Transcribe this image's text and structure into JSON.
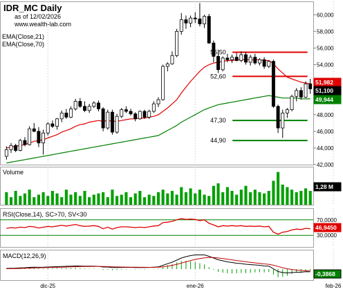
{
  "header": {
    "title": "IDR_MC Daily",
    "date_line": "as of 12/02/2026",
    "site": "www.wealth-lab.com",
    "ema_labels": [
      "EMA(Close,21)",
      "EMA(Close,70)"
    ]
  },
  "colors": {
    "up_candle": "#ffffff",
    "down_candle": "#000000",
    "ema21": "#e00000",
    "ema70": "#008000",
    "resistance": "#e00000",
    "support": "#008000",
    "volume": "#00a000",
    "rsi": "#e00000",
    "macd": "#000000",
    "macd_signal": "#c00000",
    "macd_hist": "#00a000",
    "frame": "#a0a0a0"
  },
  "chart_data": [
    {
      "type": "candlestick",
      "title": "IDR_MC Daily",
      "y_axis_ticks": [
        "60,000",
        "58,000",
        "56,000",
        "54,000",
        "52,000",
        "50,000",
        "48,000",
        "46,000",
        "44,000",
        "42,000"
      ],
      "ylim": [
        42,
        61.6
      ],
      "x_labels": [
        {
          "index": 9,
          "label": "dic-25"
        },
        {
          "index": 41,
          "label": "ene-26"
        },
        {
          "index": 71,
          "label": "feb-26"
        }
      ],
      "candles": [
        {
          "o": 43.0,
          "h": 44.2,
          "l": 42.6,
          "c": 43.8
        },
        {
          "o": 43.8,
          "h": 44.6,
          "l": 43.4,
          "c": 44.3
        },
        {
          "o": 44.3,
          "h": 44.5,
          "l": 43.5,
          "c": 43.7
        },
        {
          "o": 43.7,
          "h": 45.1,
          "l": 43.6,
          "c": 44.9
        },
        {
          "o": 44.9,
          "h": 45.3,
          "l": 44.2,
          "c": 44.4
        },
        {
          "o": 44.4,
          "h": 46.6,
          "l": 44.3,
          "c": 46.3
        },
        {
          "o": 46.3,
          "h": 47.0,
          "l": 45.9,
          "c": 46.0
        },
        {
          "o": 46.0,
          "h": 46.5,
          "l": 44.1,
          "c": 44.6
        },
        {
          "o": 44.6,
          "h": 46.2,
          "l": 43.2,
          "c": 45.8
        },
        {
          "o": 45.8,
          "h": 47.1,
          "l": 45.5,
          "c": 46.9
        },
        {
          "o": 46.9,
          "h": 47.3,
          "l": 46.4,
          "c": 46.6
        },
        {
          "o": 46.6,
          "h": 47.6,
          "l": 46.2,
          "c": 47.5
        },
        {
          "o": 47.5,
          "h": 48.5,
          "l": 47.1,
          "c": 48.2
        },
        {
          "o": 48.2,
          "h": 48.7,
          "l": 47.5,
          "c": 47.7
        },
        {
          "o": 47.7,
          "h": 49.0,
          "l": 47.6,
          "c": 48.7
        },
        {
          "o": 48.7,
          "h": 49.9,
          "l": 48.5,
          "c": 49.6
        },
        {
          "o": 49.6,
          "h": 50.0,
          "l": 48.8,
          "c": 49.0
        },
        {
          "o": 49.0,
          "h": 49.6,
          "l": 48.3,
          "c": 48.5
        },
        {
          "o": 48.5,
          "h": 49.3,
          "l": 48.2,
          "c": 49.0
        },
        {
          "o": 49.0,
          "h": 49.6,
          "l": 48.8,
          "c": 49.4
        },
        {
          "o": 49.4,
          "h": 49.7,
          "l": 48.4,
          "c": 48.7
        },
        {
          "o": 48.7,
          "h": 48.9,
          "l": 46.0,
          "c": 46.4
        },
        {
          "o": 46.4,
          "h": 48.6,
          "l": 46.2,
          "c": 48.3
        },
        {
          "o": 48.3,
          "h": 48.6,
          "l": 45.6,
          "c": 45.9
        },
        {
          "o": 45.9,
          "h": 48.1,
          "l": 45.7,
          "c": 47.8
        },
        {
          "o": 47.8,
          "h": 48.8,
          "l": 47.6,
          "c": 48.6
        },
        {
          "o": 48.6,
          "h": 49.0,
          "l": 48.2,
          "c": 48.4
        },
        {
          "o": 48.4,
          "h": 48.7,
          "l": 47.9,
          "c": 48.1
        },
        {
          "o": 48.1,
          "h": 48.3,
          "l": 47.2,
          "c": 47.5
        },
        {
          "o": 47.5,
          "h": 48.5,
          "l": 47.4,
          "c": 48.4
        },
        {
          "o": 48.4,
          "h": 48.6,
          "l": 47.5,
          "c": 47.7
        },
        {
          "o": 47.7,
          "h": 48.6,
          "l": 47.5,
          "c": 48.4
        },
        {
          "o": 48.4,
          "h": 49.6,
          "l": 48.2,
          "c": 49.3
        },
        {
          "o": 49.3,
          "h": 50.1,
          "l": 48.9,
          "c": 49.8
        },
        {
          "o": 49.8,
          "h": 54.0,
          "l": 49.7,
          "c": 53.8
        },
        {
          "o": 53.8,
          "h": 54.3,
          "l": 53.2,
          "c": 54.1
        },
        {
          "o": 54.1,
          "h": 55.6,
          "l": 54.0,
          "c": 55.1
        },
        {
          "o": 55.1,
          "h": 58.3,
          "l": 54.9,
          "c": 58.0
        },
        {
          "o": 58.0,
          "h": 60.2,
          "l": 57.6,
          "c": 59.4
        },
        {
          "o": 59.4,
          "h": 59.9,
          "l": 58.3,
          "c": 59.0
        },
        {
          "o": 59.0,
          "h": 59.9,
          "l": 58.5,
          "c": 59.6
        },
        {
          "o": 59.6,
          "h": 60.3,
          "l": 59.0,
          "c": 59.5
        },
        {
          "o": 59.5,
          "h": 61.4,
          "l": 58.6,
          "c": 58.9
        },
        {
          "o": 58.9,
          "h": 60.0,
          "l": 58.4,
          "c": 59.8
        },
        {
          "o": 59.8,
          "h": 60.1,
          "l": 56.5,
          "c": 56.6
        },
        {
          "o": 56.6,
          "h": 56.9,
          "l": 54.3,
          "c": 55.0
        },
        {
          "o": 55.0,
          "h": 55.8,
          "l": 53.0,
          "c": 53.4
        },
        {
          "o": 53.4,
          "h": 55.0,
          "l": 53.2,
          "c": 54.8
        },
        {
          "o": 54.8,
          "h": 55.3,
          "l": 54.3,
          "c": 54.6
        },
        {
          "o": 54.6,
          "h": 55.2,
          "l": 54.2,
          "c": 54.9
        },
        {
          "o": 54.9,
          "h": 55.4,
          "l": 54.4,
          "c": 54.5
        },
        {
          "o": 54.5,
          "h": 55.6,
          "l": 54.3,
          "c": 55.2
        },
        {
          "o": 55.2,
          "h": 55.5,
          "l": 54.0,
          "c": 54.3
        },
        {
          "o": 54.3,
          "h": 55.2,
          "l": 53.9,
          "c": 54.9
        },
        {
          "o": 54.9,
          "h": 55.3,
          "l": 54.0,
          "c": 54.2
        },
        {
          "o": 54.2,
          "h": 54.8,
          "l": 53.9,
          "c": 54.6
        },
        {
          "o": 54.6,
          "h": 54.9,
          "l": 53.5,
          "c": 53.8
        },
        {
          "o": 53.8,
          "h": 54.5,
          "l": 53.6,
          "c": 54.4
        },
        {
          "o": 54.4,
          "h": 54.6,
          "l": 48.8,
          "c": 49.0
        },
        {
          "o": 49.0,
          "h": 49.2,
          "l": 45.8,
          "c": 46.4
        },
        {
          "o": 46.4,
          "h": 48.6,
          "l": 45.2,
          "c": 48.2
        },
        {
          "o": 48.2,
          "h": 48.8,
          "l": 47.6,
          "c": 48.6
        },
        {
          "o": 48.6,
          "h": 50.4,
          "l": 48.4,
          "c": 50.2
        },
        {
          "o": 50.2,
          "h": 51.2,
          "l": 49.6,
          "c": 50.9
        },
        {
          "o": 50.9,
          "h": 51.3,
          "l": 49.8,
          "c": 50.1
        },
        {
          "o": 50.1,
          "h": 52.0,
          "l": 50.0,
          "c": 51.7
        },
        {
          "o": 51.7,
          "h": 52.3,
          "l": 50.5,
          "c": 51.1
        }
      ],
      "ema": [
        {
          "name": "EMA(Close,21)",
          "start": 0,
          "values": [
            44.0,
            44.1,
            44.2,
            44.3,
            44.4,
            44.6,
            44.8,
            44.9,
            45.0,
            45.2,
            45.4,
            45.6,
            45.9,
            46.1,
            46.3,
            46.6,
            46.8,
            46.9,
            47.1,
            47.2,
            47.3,
            47.2,
            47.3,
            47.2,
            47.2,
            47.3,
            47.4,
            47.5,
            47.5,
            47.6,
            47.6,
            47.7,
            47.8,
            48.0,
            48.4,
            48.8,
            49.3,
            49.8,
            50.6,
            51.3,
            52.0,
            52.6,
            53.2,
            53.7,
            54.0,
            54.2,
            54.3,
            54.4,
            54.5,
            54.5,
            54.6,
            54.6,
            54.6,
            54.6,
            54.6,
            54.6,
            54.5,
            54.5,
            54.1,
            53.5,
            53.0,
            52.5,
            52.3,
            52.1,
            51.9,
            51.8,
            51.7
          ]
        },
        {
          "name": "EMA(Close,70)",
          "start": 0,
          "values": [
            42.2,
            42.3,
            42.4,
            42.5,
            42.6,
            42.7,
            42.8,
            42.9,
            43.0,
            43.1,
            43.2,
            43.3,
            43.4,
            43.5,
            43.6,
            43.7,
            43.8,
            43.9,
            44.0,
            44.1,
            44.2,
            44.3,
            44.4,
            44.5,
            44.6,
            44.7,
            44.8,
            44.9,
            45.0,
            45.1,
            45.2,
            45.3,
            45.4,
            45.5,
            45.8,
            46.1,
            46.4,
            46.7,
            47.1,
            47.4,
            47.7,
            48.0,
            48.3,
            48.6,
            48.8,
            49.0,
            49.2,
            49.3,
            49.4,
            49.5,
            49.6,
            49.7,
            49.8,
            49.9,
            50.0,
            50.1,
            50.2,
            50.3,
            50.2,
            50.1,
            50.0,
            50.0,
            50.0,
            50.0,
            49.9,
            49.9,
            49.9
          ]
        }
      ],
      "levels": [
        {
          "value": 55.5,
          "label": "55,50",
          "kind": "resistance",
          "start": 50
        },
        {
          "value": 52.6,
          "label": "52,60",
          "kind": "resistance",
          "start": 50
        },
        {
          "value": 47.3,
          "label": "47,30",
          "kind": "support",
          "start": 50
        },
        {
          "value": 44.9,
          "label": "44,90",
          "kind": "support",
          "start": 50
        }
      ],
      "price_tags": [
        {
          "value": 51.982,
          "label": "51,982",
          "bg": "#e00000",
          "fg": "#ffffff"
        },
        {
          "value": 51.1,
          "label": "51,100",
          "bg": "#000000",
          "fg": "#ffffff"
        },
        {
          "value": 49.944,
          "label": "49,944",
          "bg": "#008000",
          "fg": "#ffffff"
        }
      ]
    },
    {
      "type": "bar",
      "title": "Volume",
      "last_label": "1,28 M",
      "values": [
        0.5,
        0.3,
        0.55,
        0.35,
        0.45,
        0.6,
        0.3,
        0.4,
        0.5,
        0.35,
        0.55,
        0.45,
        0.3,
        0.6,
        0.4,
        0.5,
        0.35,
        0.55,
        0.3,
        0.4,
        0.45,
        0.5,
        0.3,
        0.6,
        0.35,
        0.4,
        0.5,
        0.3,
        0.45,
        0.55,
        0.3,
        0.4,
        0.35,
        0.5,
        0.6,
        0.45,
        0.55,
        0.4,
        0.7,
        0.5,
        0.65,
        0.45,
        0.6,
        0.4,
        0.35,
        0.75,
        0.85,
        0.5,
        0.7,
        0.55,
        0.4,
        0.6,
        0.75,
        0.5,
        0.6,
        0.5,
        0.45,
        0.55,
        0.95,
        1.3,
        0.8,
        0.7,
        0.6,
        0.5,
        0.55,
        0.65,
        0.55
      ],
      "ylim": [
        0,
        1.4
      ]
    },
    {
      "type": "line",
      "title": "RSI(Close,14), SC>70, SV<30",
      "y_axis_ticks": [
        "70,0000",
        "30,0000"
      ],
      "last_label": "46,9450",
      "ylim": [
        0,
        100
      ],
      "bands": [
        70,
        30
      ],
      "values": [
        48,
        50,
        49,
        51,
        50,
        53,
        52,
        49,
        51,
        53,
        52,
        54,
        56,
        54,
        56,
        58,
        55,
        53,
        54,
        55,
        53,
        47,
        51,
        46,
        50,
        52,
        52,
        51,
        50,
        51,
        50,
        52,
        54,
        55,
        63,
        64,
        66,
        70,
        73,
        71,
        72,
        71,
        68,
        70,
        61,
        57,
        52,
        55,
        54,
        55,
        54,
        55,
        53,
        54,
        53,
        54,
        52,
        53,
        38,
        33,
        38,
        40,
        44,
        46,
        45,
        48,
        47
      ]
    },
    {
      "type": "line",
      "title": "MACD(12,26,9)",
      "last_label": "-0,3868",
      "ylim": [
        -1.6,
        2.8
      ],
      "series": [
        {
          "name": "MACD(12,26,9)",
          "values": [
            0.1,
            0.12,
            0.14,
            0.18,
            0.2,
            0.25,
            0.28,
            0.26,
            0.27,
            0.3,
            0.32,
            0.35,
            0.38,
            0.4,
            0.42,
            0.45,
            0.44,
            0.42,
            0.42,
            0.42,
            0.4,
            0.3,
            0.3,
            0.22,
            0.22,
            0.24,
            0.25,
            0.25,
            0.23,
            0.24,
            0.22,
            0.24,
            0.28,
            0.32,
            0.55,
            0.78,
            1.0,
            1.3,
            1.6,
            1.8,
            1.95,
            2.05,
            2.05,
            2.05,
            1.85,
            1.6,
            1.35,
            1.2,
            1.05,
            0.95,
            0.85,
            0.8,
            0.7,
            0.65,
            0.6,
            0.55,
            0.45,
            0.42,
            0.05,
            -0.35,
            -0.5,
            -0.55,
            -0.5,
            -0.45,
            -0.45,
            -0.38,
            -0.39
          ]
        },
        {
          "values": [
            0.05,
            0.07,
            0.08,
            0.1,
            0.12,
            0.14,
            0.17,
            0.19,
            0.21,
            0.22,
            0.24,
            0.26,
            0.28,
            0.3,
            0.32,
            0.34,
            0.36,
            0.37,
            0.38,
            0.39,
            0.39,
            0.37,
            0.36,
            0.33,
            0.31,
            0.3,
            0.29,
            0.28,
            0.27,
            0.26,
            0.26,
            0.25,
            0.26,
            0.27,
            0.33,
            0.42,
            0.54,
            0.69,
            0.87,
            1.05,
            1.23,
            1.39,
            1.52,
            1.63,
            1.68,
            1.67,
            1.61,
            1.53,
            1.43,
            1.34,
            1.24,
            1.15,
            1.06,
            0.98,
            0.9,
            0.83,
            0.75,
            0.69,
            0.56,
            0.38,
            0.2,
            0.05,
            -0.06,
            -0.14,
            -0.2,
            -0.24,
            -0.27
          ]
        }
      ]
    }
  ]
}
